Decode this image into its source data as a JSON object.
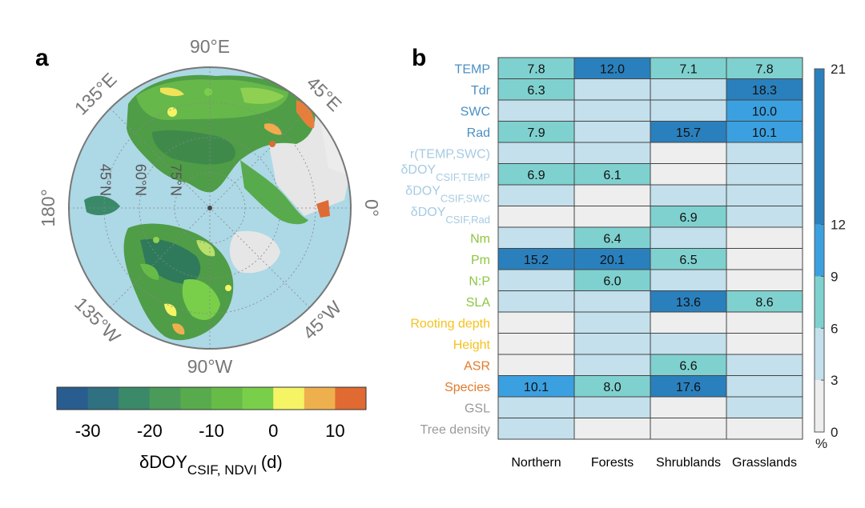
{
  "panel_a": {
    "letter": "a",
    "longitude_labels": [
      "90°E",
      "45°E",
      "0°",
      "45°W",
      "90°W",
      "135°W",
      "180°",
      "135°E"
    ],
    "latitude_labels": [
      "45°N",
      "60°N",
      "75°N"
    ],
    "colorbar": {
      "colors": [
        "#2a5d8f",
        "#2f7180",
        "#3a8a6a",
        "#4a9a5a",
        "#58ab4c",
        "#67bc47",
        "#79cf4a",
        "#f4f465",
        "#eeb04e",
        "#e06a32"
      ],
      "ticks": [
        "-30",
        "-20",
        "-10",
        "0",
        "10"
      ],
      "label_main": "δDOY",
      "label_sub": "CSIF, NDVI",
      "label_unit": "(d)"
    }
  },
  "panel_b": {
    "letter": "b",
    "colorbar_unit": "%",
    "colorbar_ticks": [
      "21",
      "12",
      "9",
      "6",
      "3",
      "0"
    ]
  },
  "colors": {
    "climate_blue": "#4a8fc4",
    "light_blue": "#a6cbe3",
    "green": "#8cc63f",
    "yellow": "#f6c11c",
    "orange": "#e07b2c",
    "gray": "#9a9a9a",
    "ocean": "#add8e6",
    "ice": "#e8e8e8"
  },
  "chart_data": {
    "type": "heatmap",
    "columns": [
      "Northern",
      "Forests",
      "Shrublands",
      "Grasslands"
    ],
    "rows": [
      {
        "name": "TEMP",
        "color": "#4a8fc4"
      },
      {
        "name": "Tdr",
        "color": "#4a8fc4"
      },
      {
        "name": "SWC",
        "color": "#4a8fc4"
      },
      {
        "name": "Rad",
        "color": "#4a8fc4"
      },
      {
        "name": "r(TEMP,SWC)",
        "color": "#a6cbe3"
      },
      {
        "name": "δDOY",
        "sub": "CSIF,TEMP",
        "color": "#a6cbe3"
      },
      {
        "name": "δDOY",
        "sub": "CSIF,SWC",
        "color": "#a6cbe3"
      },
      {
        "name": "δDOY",
        "sub": "CSIF,Rad",
        "color": "#a6cbe3"
      },
      {
        "name": "Nm",
        "color": "#8cc63f"
      },
      {
        "name": "Pm",
        "color": "#8cc63f"
      },
      {
        "name": "N:P",
        "color": "#8cc63f"
      },
      {
        "name": "SLA",
        "color": "#8cc63f"
      },
      {
        "name": "Rooting depth",
        "color": "#f6c11c"
      },
      {
        "name": "Height",
        "color": "#f6c11c"
      },
      {
        "name": "ASR",
        "color": "#e07b2c"
      },
      {
        "name": "Species",
        "color": "#e07b2c"
      },
      {
        "name": "GSL",
        "color": "#9a9a9a"
      },
      {
        "name": "Tree density",
        "color": "#9a9a9a"
      }
    ],
    "values": [
      [
        7.8,
        12.0,
        7.1,
        7.8
      ],
      [
        6.3,
        4,
        4,
        18.3
      ],
      [
        4,
        4,
        4,
        10.0
      ],
      [
        7.9,
        4,
        15.7,
        10.1
      ],
      [
        4,
        4,
        1,
        4
      ],
      [
        6.9,
        6.1,
        1,
        4
      ],
      [
        4,
        1,
        4,
        4
      ],
      [
        1,
        1,
        6.9,
        4
      ],
      [
        4,
        6.4,
        4,
        1
      ],
      [
        15.2,
        20.1,
        6.5,
        1
      ],
      [
        4,
        6.0,
        4,
        1
      ],
      [
        4,
        4,
        13.6,
        8.6
      ],
      [
        1,
        4,
        1,
        1
      ],
      [
        1,
        4,
        4,
        1
      ],
      [
        1,
        4,
        6.6,
        4
      ],
      [
        10.1,
        8.0,
        17.6,
        4
      ],
      [
        4,
        4,
        1,
        4
      ],
      [
        4,
        1,
        1,
        1
      ]
    ],
    "labels": [
      [
        "7.8",
        "12.0",
        "7.1",
        "7.8"
      ],
      [
        "6.3",
        "",
        "",
        "18.3"
      ],
      [
        "",
        "",
        "",
        "10.0"
      ],
      [
        "7.9",
        "",
        "15.7",
        "10.1"
      ],
      [
        "",
        "",
        "",
        ""
      ],
      [
        "6.9",
        "6.1",
        "",
        ""
      ],
      [
        "",
        "",
        "",
        ""
      ],
      [
        "",
        "",
        "6.9",
        ""
      ],
      [
        "",
        "6.4",
        "",
        ""
      ],
      [
        "15.2",
        "20.1",
        "6.5",
        ""
      ],
      [
        "",
        "6.0",
        "",
        ""
      ],
      [
        "",
        "",
        "13.6",
        "8.6"
      ],
      [
        "",
        "",
        "",
        ""
      ],
      [
        "",
        "",
        "",
        ""
      ],
      [
        "",
        "",
        "6.6",
        ""
      ],
      [
        "10.1",
        "8.0",
        "17.6",
        ""
      ],
      [
        "",
        "",
        "",
        ""
      ],
      [
        "",
        "",
        "",
        ""
      ]
    ],
    "colorbar_levels": [
      {
        "from": 0,
        "to": 3,
        "color": "#eeeeee"
      },
      {
        "from": 3,
        "to": 6,
        "color": "#c3e0ec"
      },
      {
        "from": 6,
        "to": 9,
        "color": "#7fd1cf"
      },
      {
        "from": 9,
        "to": 12,
        "color": "#3ba0e0"
      },
      {
        "from": 12,
        "to": 21,
        "color": "#2a80bd"
      }
    ],
    "colorbar_range": [
      0,
      21
    ]
  }
}
